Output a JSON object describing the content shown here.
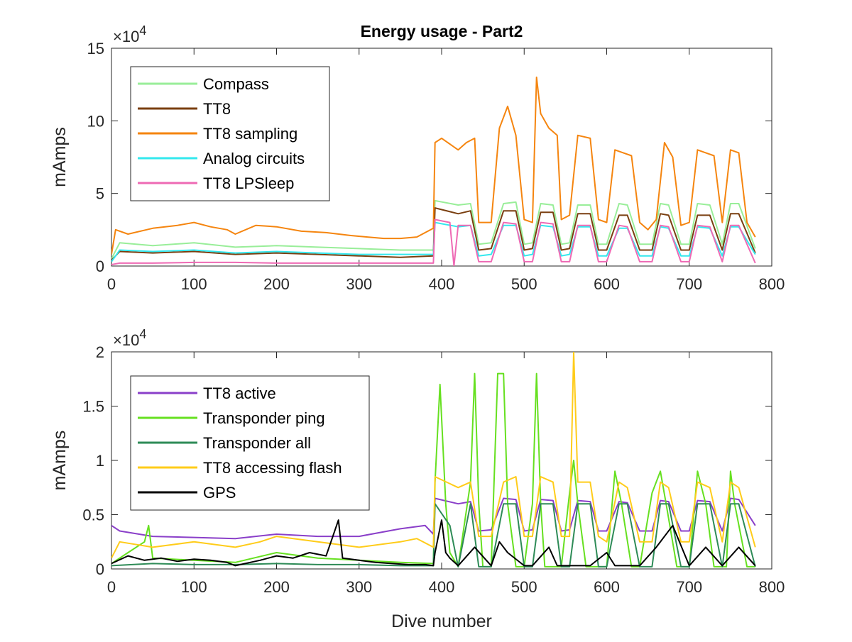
{
  "figure": {
    "title": "Energy usage - Part2",
    "xlabel": "Dive number"
  },
  "chart_data": [
    {
      "type": "line",
      "title": "Energy usage - Part2",
      "xlabel": "",
      "ylabel": "mAmps",
      "y_exponent_label": "×10",
      "y_exponent": "4",
      "xlim": [
        0,
        800
      ],
      "ylim": [
        0,
        150000
      ],
      "xticks": [
        0,
        100,
        200,
        300,
        400,
        500,
        600,
        700,
        800
      ],
      "xtick_labels": [
        "0",
        "100",
        "200",
        "300",
        "400",
        "500",
        "600",
        "700",
        "800"
      ],
      "yticks": [
        0,
        50000,
        100000,
        150000
      ],
      "ytick_labels": [
        "0",
        "5",
        "10",
        "15"
      ],
      "legend_position": "top-left",
      "grid": false,
      "series": [
        {
          "name": "Compass",
          "color": "#99ee99",
          "x": [
            0,
            10,
            50,
            100,
            150,
            200,
            250,
            300,
            350,
            390,
            392,
            420,
            435,
            445,
            460,
            475,
            490,
            500,
            510,
            520,
            535,
            545,
            555,
            565,
            580,
            590,
            600,
            615,
            625,
            640,
            655,
            665,
            675,
            690,
            700,
            710,
            725,
            740,
            750,
            760,
            780
          ],
          "y": [
            5000,
            16000,
            14000,
            16000,
            13000,
            14000,
            13000,
            12000,
            11000,
            11000,
            45000,
            42000,
            43000,
            15000,
            16000,
            43000,
            44000,
            15000,
            16000,
            43000,
            42000,
            15000,
            16000,
            42000,
            42000,
            15000,
            15000,
            43000,
            42000,
            15000,
            15000,
            43000,
            42000,
            15000,
            15000,
            43000,
            42000,
            15000,
            43000,
            43000,
            12000
          ]
        },
        {
          "name": "TT8",
          "color": "#7a3f10",
          "x": [
            0,
            10,
            50,
            100,
            150,
            200,
            250,
            300,
            350,
            390,
            392,
            420,
            435,
            445,
            460,
            475,
            490,
            500,
            510,
            520,
            535,
            545,
            555,
            565,
            580,
            590,
            600,
            615,
            625,
            640,
            655,
            665,
            675,
            690,
            700,
            710,
            725,
            740,
            750,
            760,
            780
          ],
          "y": [
            4000,
            10000,
            9000,
            10000,
            8000,
            9000,
            8000,
            7000,
            6000,
            7000,
            40000,
            36000,
            38000,
            11000,
            12000,
            38000,
            38000,
            11000,
            12000,
            37000,
            37000,
            11000,
            12000,
            36000,
            36000,
            11000,
            11000,
            35000,
            35000,
            11000,
            11000,
            36000,
            35000,
            11000,
            11000,
            35000,
            35000,
            11000,
            36000,
            36000,
            9000
          ]
        },
        {
          "name": "TT8 sampling",
          "color": "#f5850f",
          "x": [
            0,
            5,
            20,
            50,
            80,
            100,
            120,
            140,
            150,
            175,
            200,
            230,
            260,
            290,
            310,
            330,
            350,
            370,
            390,
            392,
            400,
            420,
            430,
            440,
            445,
            460,
            470,
            480,
            490,
            500,
            510,
            515,
            520,
            530,
            540,
            545,
            555,
            565,
            580,
            590,
            600,
            610,
            620,
            630,
            640,
            650,
            660,
            670,
            680,
            690,
            700,
            710,
            720,
            730,
            740,
            750,
            760,
            770,
            780
          ],
          "y": [
            8000,
            25000,
            22000,
            26000,
            28000,
            30000,
            27000,
            25000,
            22000,
            28000,
            27000,
            24000,
            23000,
            21000,
            20000,
            19000,
            19000,
            20000,
            26000,
            85000,
            88000,
            80000,
            85000,
            88000,
            30000,
            30000,
            95000,
            110000,
            90000,
            32000,
            30000,
            130000,
            105000,
            95000,
            90000,
            32000,
            35000,
            90000,
            88000,
            32000,
            30000,
            80000,
            78000,
            76000,
            30000,
            25000,
            32000,
            85000,
            75000,
            28000,
            30000,
            80000,
            78000,
            76000,
            30000,
            80000,
            78000,
            30000,
            20000
          ]
        },
        {
          "name": "Analog circuits",
          "color": "#33e8ee",
          "x": [
            0,
            10,
            50,
            100,
            150,
            200,
            250,
            300,
            350,
            390,
            392,
            420,
            435,
            445,
            460,
            475,
            490,
            500,
            510,
            520,
            535,
            545,
            555,
            565,
            580,
            590,
            600,
            615,
            625,
            640,
            655,
            665,
            675,
            690,
            700,
            710,
            725,
            740,
            750,
            760,
            780
          ],
          "y": [
            3000,
            11000,
            10000,
            11000,
            9000,
            10000,
            9000,
            8000,
            8000,
            8000,
            30000,
            27000,
            28000,
            7000,
            8000,
            28000,
            28000,
            7000,
            8000,
            28000,
            27000,
            7000,
            8000,
            27000,
            27000,
            7000,
            7000,
            26000,
            26000,
            7000,
            7000,
            27000,
            26000,
            7000,
            7000,
            27000,
            26000,
            7000,
            27000,
            27000,
            8000
          ]
        },
        {
          "name": "TT8 LPSleep",
          "color": "#ee6ab4",
          "x": [
            0,
            10,
            50,
            100,
            150,
            200,
            250,
            300,
            350,
            390,
            392,
            410,
            415,
            420,
            435,
            445,
            460,
            475,
            490,
            500,
            510,
            520,
            535,
            545,
            555,
            565,
            580,
            590,
            600,
            615,
            625,
            640,
            655,
            665,
            675,
            690,
            700,
            710,
            725,
            740,
            750,
            760,
            780
          ],
          "y": [
            1000,
            2000,
            2000,
            2500,
            2500,
            2000,
            2000,
            2000,
            2000,
            2000,
            32000,
            30000,
            0,
            28000,
            28000,
            3000,
            3000,
            30000,
            29000,
            3000,
            3000,
            30000,
            29000,
            3000,
            3000,
            28000,
            28000,
            3000,
            3000,
            28000,
            27000,
            3000,
            3000,
            28000,
            27000,
            3000,
            3000,
            28000,
            27000,
            3000,
            28000,
            28000,
            2000
          ]
        }
      ]
    },
    {
      "type": "line",
      "title": "",
      "xlabel": "Dive number",
      "ylabel": "mAmps",
      "y_exponent_label": "×10",
      "y_exponent": "4",
      "xlim": [
        0,
        800
      ],
      "ylim": [
        0,
        20000
      ],
      "xticks": [
        0,
        100,
        200,
        300,
        400,
        500,
        600,
        700,
        800
      ],
      "xtick_labels": [
        "0",
        "100",
        "200",
        "300",
        "400",
        "500",
        "600",
        "700",
        "800"
      ],
      "yticks": [
        0,
        5000,
        10000,
        15000,
        20000
      ],
      "ytick_labels": [
        "0",
        "0.5",
        "1",
        "1.5",
        "2"
      ],
      "legend_position": "top-left",
      "grid": false,
      "series": [
        {
          "name": "TT8 active",
          "color": "#8a3fc9",
          "x": [
            0,
            10,
            50,
            100,
            150,
            200,
            250,
            300,
            350,
            380,
            390,
            392,
            420,
            435,
            445,
            460,
            475,
            490,
            500,
            510,
            520,
            535,
            545,
            555,
            565,
            580,
            590,
            600,
            615,
            625,
            640,
            655,
            665,
            675,
            690,
            700,
            710,
            725,
            740,
            750,
            760,
            780
          ],
          "y": [
            4000,
            3500,
            3000,
            2900,
            2800,
            3200,
            3000,
            3000,
            3700,
            4000,
            3200,
            6500,
            6000,
            6200,
            3500,
            3600,
            6500,
            6400,
            3500,
            3600,
            6400,
            6300,
            3500,
            3600,
            6300,
            6200,
            3500,
            3500,
            6200,
            6100,
            3500,
            3500,
            6300,
            6200,
            3500,
            3500,
            6300,
            6200,
            3500,
            6500,
            6400,
            4000
          ]
        },
        {
          "name": "Transponder ping",
          "color": "#66e020",
          "x": [
            0,
            20,
            40,
            45,
            50,
            100,
            150,
            200,
            250,
            300,
            350,
            390,
            392,
            398,
            405,
            410,
            420,
            435,
            440,
            445,
            450,
            460,
            468,
            475,
            480,
            490,
            500,
            510,
            515,
            520,
            525,
            535,
            545,
            555,
            560,
            565,
            575,
            585,
            600,
            610,
            618,
            630,
            640,
            655,
            665,
            672,
            685,
            700,
            710,
            720,
            730,
            745,
            750,
            755,
            770,
            780
          ],
          "y": [
            500,
            1500,
            2500,
            4000,
            1000,
            800,
            600,
            1500,
            1000,
            800,
            600,
            500,
            8000,
            17000,
            6000,
            1500,
            200,
            8000,
            18000,
            6000,
            200,
            200,
            18000,
            18000,
            6000,
            200,
            200,
            6000,
            18000,
            6000,
            200,
            200,
            200,
            7000,
            10000,
            6000,
            200,
            200,
            200,
            9000,
            6000,
            200,
            200,
            7000,
            9000,
            6000,
            200,
            200,
            9000,
            6000,
            200,
            200,
            9000,
            6000,
            200,
            200
          ]
        },
        {
          "name": "Transponder all",
          "color": "#2e8b57",
          "x": [
            0,
            50,
            100,
            150,
            200,
            250,
            300,
            350,
            390,
            392,
            410,
            420,
            435,
            445,
            460,
            475,
            490,
            500,
            510,
            520,
            535,
            545,
            555,
            565,
            580,
            590,
            600,
            615,
            625,
            640,
            655,
            665,
            675,
            690,
            700,
            710,
            725,
            740,
            750,
            760,
            780
          ],
          "y": [
            300,
            500,
            400,
            400,
            500,
            400,
            400,
            300,
            300,
            6000,
            4000,
            200,
            6000,
            200,
            200,
            6000,
            6000,
            200,
            200,
            6000,
            6000,
            200,
            200,
            6000,
            6000,
            200,
            200,
            6000,
            6000,
            200,
            200,
            6000,
            6000,
            200,
            200,
            6000,
            6000,
            200,
            6000,
            6000,
            200
          ]
        },
        {
          "name": "TT8 accessing flash",
          "color": "#ffcc1a",
          "x": [
            0,
            10,
            50,
            100,
            150,
            180,
            200,
            250,
            300,
            350,
            370,
            390,
            392,
            420,
            435,
            445,
            460,
            475,
            490,
            500,
            510,
            520,
            535,
            545,
            555,
            560,
            565,
            580,
            590,
            600,
            615,
            625,
            640,
            655,
            665,
            675,
            690,
            700,
            710,
            725,
            740,
            750,
            760,
            780
          ],
          "y": [
            1000,
            2500,
            2000,
            2500,
            2000,
            2500,
            3000,
            2500,
            2000,
            2500,
            2800,
            2000,
            8500,
            7500,
            8000,
            3000,
            3000,
            8000,
            8500,
            3000,
            3000,
            8500,
            8000,
            3000,
            3000,
            20000,
            8000,
            8000,
            3000,
            2500,
            8000,
            7500,
            2500,
            2500,
            8000,
            7500,
            2500,
            2500,
            8000,
            7500,
            2500,
            8000,
            7500,
            2000
          ]
        },
        {
          "name": "GPS",
          "color": "#000000",
          "x": [
            0,
            20,
            40,
            60,
            80,
            100,
            120,
            140,
            150,
            180,
            200,
            220,
            240,
            260,
            275,
            280,
            300,
            320,
            340,
            360,
            380,
            390,
            392,
            400,
            405,
            410,
            420,
            440,
            460,
            470,
            480,
            500,
            510,
            530,
            540,
            560,
            580,
            600,
            610,
            620,
            640,
            660,
            680,
            700,
            720,
            740,
            760,
            780
          ],
          "y": [
            500,
            1200,
            800,
            1000,
            700,
            900,
            800,
            600,
            300,
            800,
            1200,
            1000,
            1500,
            1200,
            4500,
            1000,
            800,
            600,
            500,
            400,
            400,
            300,
            1500,
            4500,
            1500,
            1000,
            300,
            2000,
            300,
            2500,
            1500,
            300,
            300,
            2000,
            300,
            300,
            300,
            1500,
            300,
            300,
            300,
            2000,
            4000,
            300,
            2000,
            300,
            2000,
            300
          ]
        }
      ]
    }
  ]
}
